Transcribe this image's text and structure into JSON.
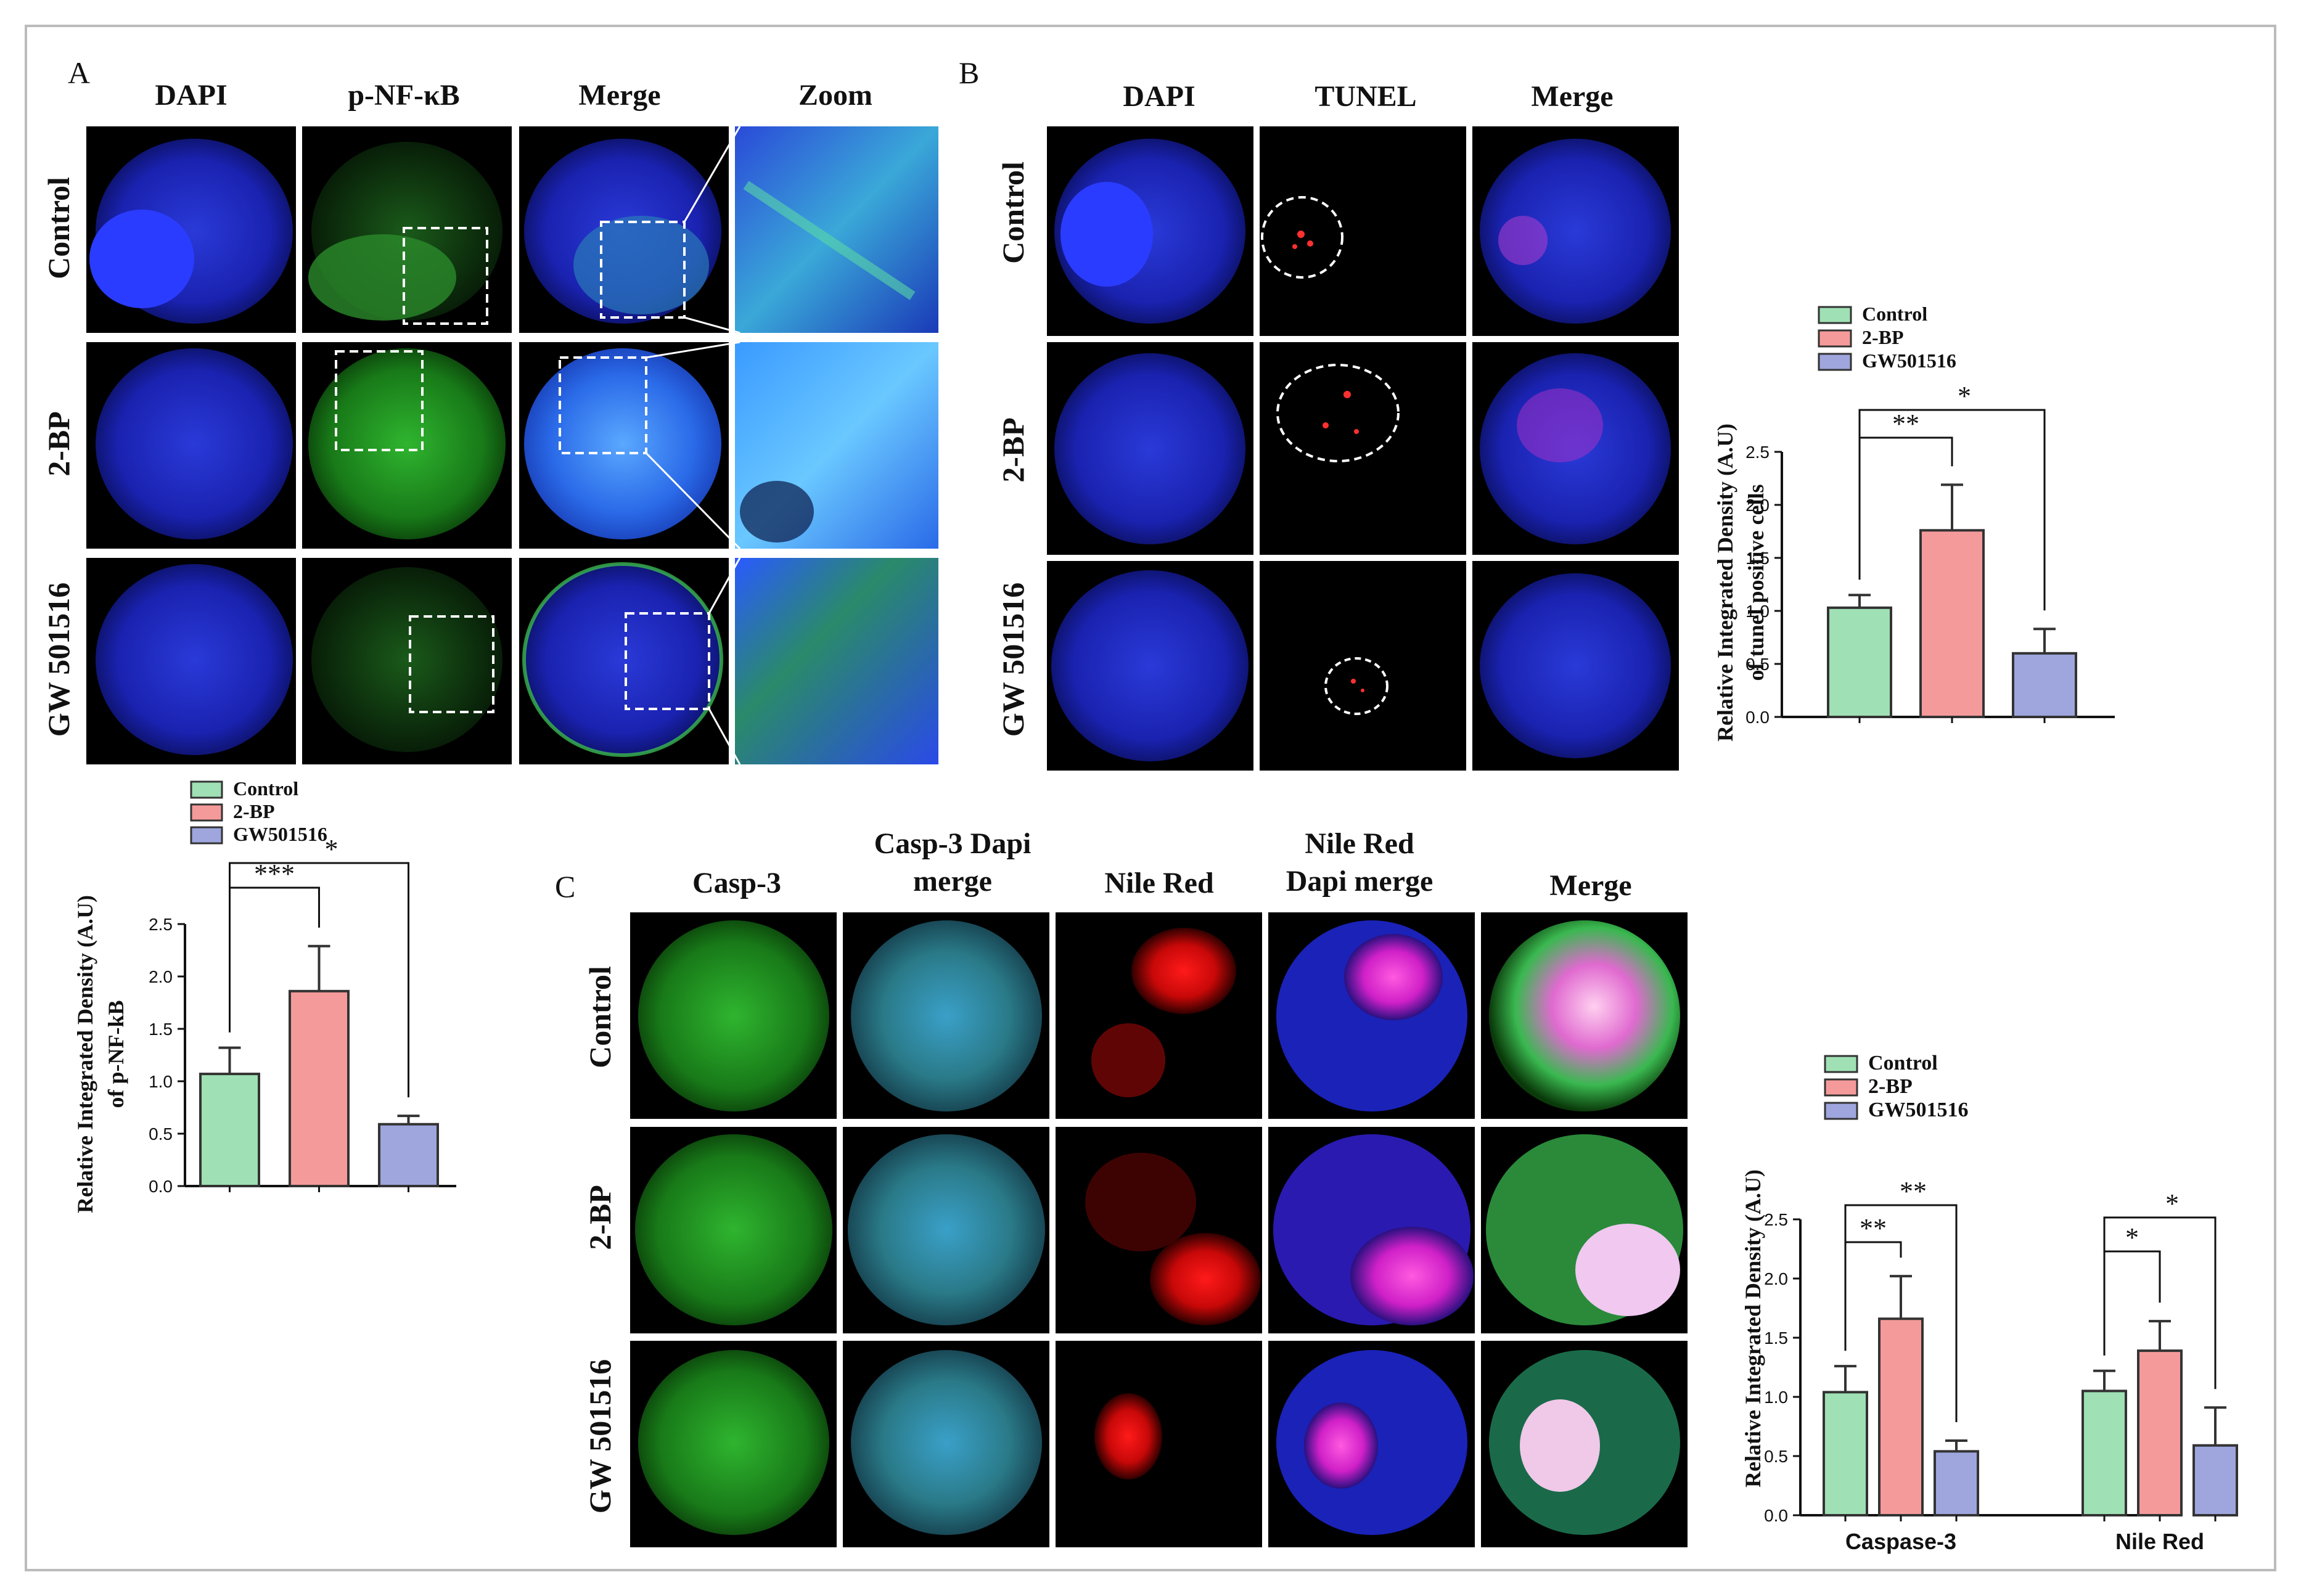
{
  "panels": {
    "A": {
      "letter": "A",
      "columns": [
        "DAPI",
        "p-NF-κB",
        "Merge",
        "Zoom"
      ],
      "rows": [
        "Control",
        "2-BP",
        "GW 501516"
      ]
    },
    "B": {
      "letter": "B",
      "columns": [
        "DAPI",
        "TUNEL",
        "Merge"
      ],
      "rows": [
        "Control",
        "2-BP",
        "GW 501516"
      ]
    },
    "C": {
      "letter": "C",
      "columns": [
        {
          "line1": "Casp-3",
          "line2": ""
        },
        {
          "line1": "Casp-3 Dapi",
          "line2": "merge"
        },
        {
          "line1": "Nile Red",
          "line2": ""
        },
        {
          "line1": "Nile Red",
          "line2": "Dapi merge"
        },
        {
          "line1": "Merge",
          "line2": ""
        }
      ],
      "rows": [
        "Control",
        "2-BP",
        "GW 501516"
      ]
    }
  },
  "colors": {
    "control": "#9fe0b4",
    "bp2": "#f59a9a",
    "gw": "#9ea6dd",
    "frame": "#bbbbbb"
  },
  "chart_data": [
    {
      "id": "A",
      "type": "bar",
      "legend": [
        "Control",
        "2-BP",
        "GW501516"
      ],
      "categories": [
        ""
      ],
      "series": [
        {
          "name": "Control",
          "values": [
            1.07
          ],
          "errors": [
            0.25
          ]
        },
        {
          "name": "2-BP",
          "values": [
            1.86
          ],
          "errors": [
            0.43
          ]
        },
        {
          "name": "GW501516",
          "values": [
            0.59
          ],
          "errors": [
            0.08
          ]
        }
      ],
      "ylabel_line1": "Relative Integrated Density (A.U)",
      "ylabel_line2": "of p-NF-kB",
      "ylim": [
        0,
        2.5
      ],
      "yticks": [
        "0.0",
        "0.5",
        "1.0",
        "1.5",
        "2.0",
        "2.5"
      ],
      "significance": [
        {
          "pair": [
            "Control",
            "2-BP"
          ],
          "label": "***"
        },
        {
          "pair": [
            "Control",
            "GW501516"
          ],
          "label": "*"
        }
      ]
    },
    {
      "id": "B",
      "type": "bar",
      "legend": [
        "Control",
        "2-BP",
        "GW501516"
      ],
      "categories": [
        ""
      ],
      "series": [
        {
          "name": "Control",
          "values": [
            1.03
          ],
          "errors": [
            0.12
          ]
        },
        {
          "name": "2-BP",
          "values": [
            1.76
          ],
          "errors": [
            0.43
          ]
        },
        {
          "name": "GW501516",
          "values": [
            0.6
          ],
          "errors": [
            0.23
          ]
        }
      ],
      "ylabel_line1": "Relative Integrated Density (A.U)",
      "ylabel_line2": "of tunel positive cells",
      "ylim": [
        0,
        2.5
      ],
      "yticks": [
        "0.0",
        "0.5",
        "1.0",
        "1.5",
        "2.0",
        "2.5"
      ],
      "significance": [
        {
          "pair": [
            "Control",
            "2-BP"
          ],
          "label": "**"
        },
        {
          "pair": [
            "Control",
            "GW501516"
          ],
          "label": "*"
        }
      ]
    },
    {
      "id": "C",
      "type": "bar",
      "legend": [
        "Control",
        "2-BP",
        "GW501516"
      ],
      "categories": [
        "Caspase-3",
        "Nile Red"
      ],
      "series": [
        {
          "name": "Control",
          "values": [
            1.04,
            1.05
          ],
          "errors": [
            0.22,
            0.17
          ]
        },
        {
          "name": "2-BP",
          "values": [
            1.66,
            1.39
          ],
          "errors": [
            0.36,
            0.25
          ]
        },
        {
          "name": "GW501516",
          "values": [
            0.54,
            0.59
          ],
          "errors": [
            0.09,
            0.32
          ]
        }
      ],
      "ylabel_line1": "Relative Integrated Density (A.U)",
      "ylabel_line2": "",
      "ylim": [
        0,
        2.5
      ],
      "yticks": [
        "0.0",
        "0.5",
        "1.0",
        "1.5",
        "2.0",
        "2.5"
      ],
      "significance": [
        {
          "category": "Caspase-3",
          "pair": [
            "Control",
            "2-BP"
          ],
          "label": "**"
        },
        {
          "category": "Caspase-3",
          "pair": [
            "Control",
            "GW501516"
          ],
          "label": "**"
        },
        {
          "category": "Nile Red",
          "pair": [
            "Control",
            "2-BP"
          ],
          "label": "*"
        },
        {
          "category": "Nile Red",
          "pair": [
            "Control",
            "GW501516"
          ],
          "label": "*"
        }
      ]
    }
  ]
}
